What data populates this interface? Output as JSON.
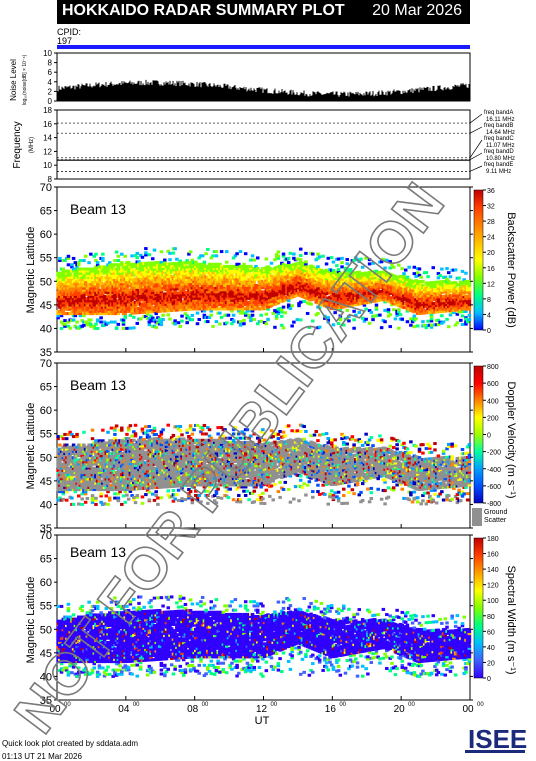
{
  "title": "HOKKAIDO RADAR SUMMARY PLOT",
  "date": "20 Mar 2026",
  "cpid_label": "CPID:",
  "cpid_value": "197",
  "noise": {
    "ylabel": "Noise Level",
    "ylabel_sub": "log₁₀(noise[dB] × 10⁻⁶)",
    "ticks": [
      "10",
      "8",
      "6",
      "4",
      "2",
      "0"
    ]
  },
  "frequency": {
    "ylabel": "Frequency",
    "ylabel_unit": "(MHz)",
    "ticks": [
      "18",
      "16",
      "14",
      "12",
      "10",
      "8"
    ],
    "bands": [
      {
        "label": "freq bandA",
        "value": "16.11 MHz",
        "mhz": 16.11
      },
      {
        "label": "freq bandB",
        "value": "14.64 MHz",
        "mhz": 14.64
      },
      {
        "label": "freq bandC",
        "value": "11.07 MHz",
        "mhz": 11.07
      },
      {
        "label": "freq bandD",
        "value": "10.80 MHz",
        "mhz": 10.8
      },
      {
        "label": "freq bandE",
        "value": "9.11 MHz",
        "mhz": 9.11
      }
    ]
  },
  "panels": [
    {
      "beam": "Beam 13",
      "ylabel": "Magnetic Latitude",
      "cb_title": "Backscatter Power (dB)",
      "cb_ticks": [
        "36",
        "32",
        "28",
        "24",
        "20",
        "16",
        "12",
        "8",
        "4",
        "0"
      ],
      "palette": "power"
    },
    {
      "beam": "Beam 13",
      "ylabel": "Magnetic Latitude",
      "cb_title": "Doppler Velocity (m s⁻¹)",
      "cb_ticks": [
        "800",
        "600",
        "400",
        "200",
        "0",
        "-200",
        "-400",
        "-600",
        "-800"
      ],
      "palette": "velocity",
      "ground_label_1": "Ground",
      "ground_label_2": "Scatter"
    },
    {
      "beam": "Beam 13",
      "ylabel": "Magnetic Latitude",
      "cb_title": "Spectral Width (m s⁻¹)",
      "cb_ticks": [
        "180",
        "160",
        "140",
        "120",
        "100",
        "80",
        "60",
        "40",
        "20",
        "0"
      ],
      "palette": "width"
    }
  ],
  "lat_ticks": [
    "70",
    "65",
    "60",
    "55",
    "50",
    "45",
    "40",
    "35"
  ],
  "xaxis": {
    "label": "UT",
    "ticks": [
      {
        "h": "00",
        "m": "00"
      },
      {
        "h": "04",
        "m": "00"
      },
      {
        "h": "08",
        "m": "00"
      },
      {
        "h": "12",
        "m": "00"
      },
      {
        "h": "16",
        "m": "00"
      },
      {
        "h": "20",
        "m": "00"
      },
      {
        "h": "00",
        "m": "00"
      }
    ]
  },
  "footer_line1": "Quick look plot created by sddata.adm",
  "footer_line2": "01:13 UT 21 Mar 2026",
  "logo": "ISEE",
  "watermark": "NOT FOR PUBLICATION",
  "chart_data": {
    "type": "heatmap",
    "title": "HOKKAIDO RADAR SUMMARY PLOT",
    "xlabel": "UT",
    "x_range_hours": [
      0,
      24
    ],
    "ylabel": "Magnetic Latitude",
    "ylim": [
      35,
      70
    ],
    "noise_ylim": [
      0,
      10
    ],
    "frequency_ylim_mhz": [
      8,
      18
    ],
    "frequency_bands_mhz": [
      16.11,
      14.64,
      11.07,
      10.8,
      9.11
    ],
    "power_range_db": [
      0,
      36
    ],
    "velocity_range_ms": [
      -800,
      800
    ],
    "width_range_ms": [
      0,
      180
    ],
    "scatter_band_lat": [
      {
        "ut": 0,
        "low": 43,
        "high": 52
      },
      {
        "ut": 4,
        "low": 43,
        "high": 54
      },
      {
        "ut": 8,
        "low": 44,
        "high": 54
      },
      {
        "ut": 12,
        "low": 44,
        "high": 53
      },
      {
        "ut": 14,
        "low": 47,
        "high": 54
      },
      {
        "ut": 16,
        "low": 44,
        "high": 52
      },
      {
        "ut": 19,
        "low": 46,
        "high": 52
      },
      {
        "ut": 21,
        "low": 43,
        "high": 50
      },
      {
        "ut": 24,
        "low": 44,
        "high": 50
      }
    ]
  }
}
